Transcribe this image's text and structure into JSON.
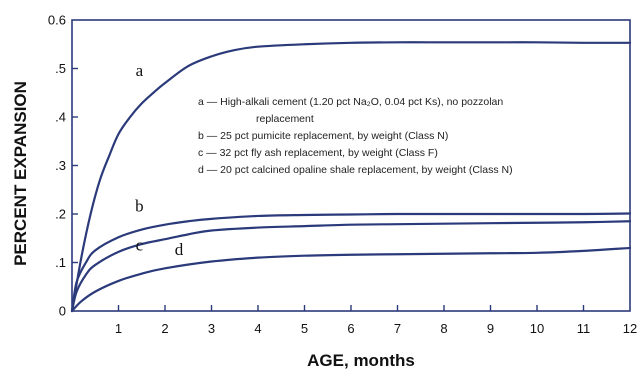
{
  "chart_data": {
    "type": "line",
    "title": "",
    "xlabel": "AGE, months",
    "ylabel": "PERCENT EXPANSION",
    "xlim": [
      0,
      12
    ],
    "ylim": [
      0,
      0.6
    ],
    "x_ticks": [
      {
        "value": 1,
        "label": "1"
      },
      {
        "value": 2,
        "label": "2"
      },
      {
        "value": 3,
        "label": "3"
      },
      {
        "value": 4,
        "label": "4"
      },
      {
        "value": 5,
        "label": "5"
      },
      {
        "value": 6,
        "label": "6"
      },
      {
        "value": 7,
        "label": "7"
      },
      {
        "value": 8,
        "label": "8"
      },
      {
        "value": 9,
        "label": "9"
      },
      {
        "value": 10,
        "label": "10"
      },
      {
        "value": 11,
        "label": "11"
      },
      {
        "value": 12,
        "label": "12"
      }
    ],
    "y_ticks": [
      {
        "value": 0,
        "label": "0"
      },
      {
        "value": 0.1,
        "label": ".1"
      },
      {
        "value": 0.2,
        "label": ".2"
      },
      {
        "value": 0.3,
        "label": ".3"
      },
      {
        "value": 0.4,
        "label": ".4"
      },
      {
        "value": 0.5,
        "label": ".5"
      },
      {
        "value": 0.6,
        "label": "0.6"
      }
    ],
    "grid": false,
    "line_color": "#2b3a7a",
    "series": [
      {
        "name": "a",
        "label_at": [
          1.45,
          0.485
        ],
        "x": [
          0,
          0.2,
          0.4,
          0.6,
          0.8,
          1.0,
          1.25,
          1.5,
          1.75,
          2.0,
          2.5,
          3.0,
          3.5,
          4.0,
          5.0,
          6.0,
          7.0,
          8.0,
          9.0,
          10.0,
          11.0,
          12.0
        ],
        "y": [
          0,
          0.11,
          0.2,
          0.27,
          0.32,
          0.365,
          0.4,
          0.428,
          0.45,
          0.47,
          0.505,
          0.525,
          0.538,
          0.545,
          0.55,
          0.553,
          0.554,
          0.554,
          0.554,
          0.554,
          0.553,
          0.553
        ]
      },
      {
        "name": "b",
        "label_at": [
          1.45,
          0.205
        ],
        "x": [
          0,
          0.1,
          0.3,
          0.5,
          1.0,
          1.5,
          2.0,
          2.5,
          3.0,
          4.0,
          5.0,
          6.0,
          7.0,
          8.0,
          9.0,
          10.0,
          11.0,
          12.0
        ],
        "y": [
          0,
          0.06,
          0.1,
          0.125,
          0.152,
          0.168,
          0.178,
          0.185,
          0.19,
          0.196,
          0.198,
          0.199,
          0.2,
          0.2,
          0.2,
          0.2,
          0.2,
          0.201
        ]
      },
      {
        "name": "c",
        "label_at": [
          1.45,
          0.125
        ],
        "x": [
          0,
          0.1,
          0.3,
          0.5,
          1.0,
          1.5,
          2.0,
          2.5,
          3.0,
          4.0,
          5.0,
          6.0,
          7.0,
          8.0,
          9.0,
          10.0,
          11.0,
          12.0
        ],
        "y": [
          0,
          0.04,
          0.075,
          0.095,
          0.122,
          0.138,
          0.148,
          0.158,
          0.166,
          0.172,
          0.175,
          0.178,
          0.179,
          0.18,
          0.181,
          0.182,
          0.183,
          0.185
        ]
      },
      {
        "name": "d",
        "label_at": [
          2.3,
          0.115
        ],
        "x": [
          0,
          0.2,
          0.5,
          1.0,
          1.5,
          2.0,
          3.0,
          4.0,
          5.0,
          6.0,
          7.0,
          8.0,
          9.0,
          10.0,
          11.0,
          12.0
        ],
        "y": [
          0,
          0.02,
          0.04,
          0.062,
          0.077,
          0.088,
          0.102,
          0.11,
          0.114,
          0.116,
          0.117,
          0.118,
          0.119,
          0.12,
          0.124,
          0.13
        ]
      }
    ],
    "legend": [
      {
        "prefix": "a",
        "lines": [
          "a — High-alkali cement (1.20 pct Na₂O, 0.04 pct Ks), no pozzolan",
          "replacement"
        ]
      },
      {
        "prefix": "b",
        "lines": [
          "b — 25 pct pumicite replacement, by weight (Class N)"
        ]
      },
      {
        "prefix": "c",
        "lines": [
          "c — 32 pct fly ash replacement, by weight (Class F)"
        ]
      },
      {
        "prefix": "d",
        "lines": [
          "d — 20 pct calcined opaline shale replacement, by weight (Class N)"
        ]
      }
    ],
    "legend_position": "center-right"
  }
}
